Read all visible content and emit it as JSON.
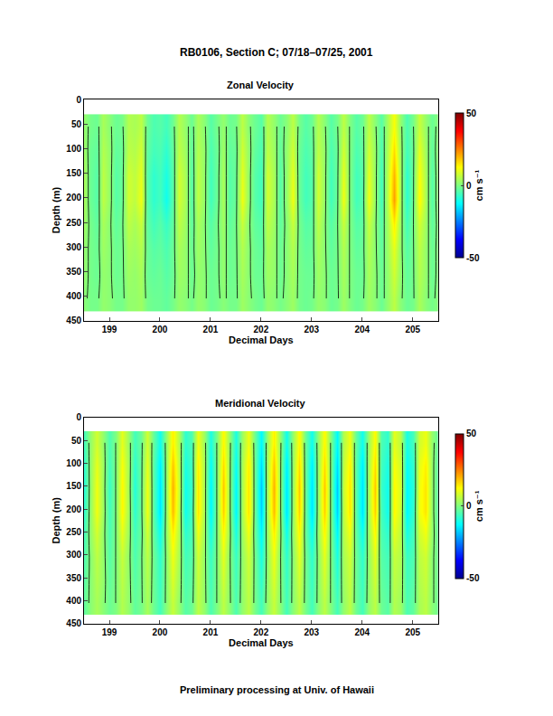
{
  "title": "RB0106, Section C; 07/18–07/25, 2001",
  "footer": "Preliminary processing at Univ. of Hawaii",
  "chart_data": [
    {
      "type": "heatmap",
      "title": "Zonal Velocity",
      "x_label": "Decimal Days",
      "y_label": "Depth (m)",
      "xlim": [
        198.5,
        205.5
      ],
      "xticks": [
        199,
        200,
        201,
        202,
        203,
        204,
        205
      ],
      "ylim": [
        450,
        0
      ],
      "yticks": [
        0,
        50,
        100,
        150,
        200,
        250,
        300,
        350,
        400,
        450
      ],
      "colorbar": {
        "range": [
          -50,
          50
        ],
        "ticks": [
          -50,
          0,
          50
        ],
        "title": "cm s⁻¹"
      },
      "contour_levels": [
        0
      ],
      "x": [
        198.5,
        198.625,
        198.75,
        198.875,
        199,
        199.125,
        199.25,
        199.375,
        199.5,
        199.625,
        199.75,
        199.875,
        200,
        200.125,
        200.25,
        200.375,
        200.5,
        200.625,
        200.75,
        200.875,
        201,
        201.125,
        201.25,
        201.375,
        201.5,
        201.625,
        201.75,
        201.875,
        202,
        202.125,
        202.25,
        202.375,
        202.5,
        202.625,
        202.75,
        202.875,
        203,
        203.125,
        203.25,
        203.375,
        203.5,
        203.625,
        203.75,
        203.875,
        204,
        204.125,
        204.25,
        204.375,
        204.5,
        204.625,
        204.75,
        204.875,
        205,
        205.125,
        205.25,
        205.375,
        205.5
      ],
      "y": [
        55,
        105,
        155,
        205,
        255,
        305,
        355,
        405
      ],
      "z": [
        [
          2,
          -1,
          -2,
          4,
          1,
          -2,
          -1,
          5,
          4,
          6,
          -2,
          -5,
          -4,
          -6,
          -2,
          5,
          2,
          -2,
          4,
          1,
          -4,
          -1,
          2,
          -2,
          -1,
          6,
          1,
          -2,
          -4,
          5,
          2,
          -2,
          1,
          6,
          -1,
          -4,
          -2,
          5,
          1,
          -4,
          -1,
          6,
          0,
          -4,
          -2,
          6,
          1,
          -4,
          4,
          12,
          2,
          -5,
          -1,
          7,
          2,
          -2,
          1
        ],
        [
          3,
          -2,
          -3,
          5,
          2,
          -3,
          -2,
          6,
          5,
          8,
          -3,
          -6,
          -5,
          -8,
          -3,
          6,
          3,
          -3,
          5,
          2,
          -5,
          -2,
          3,
          -3,
          -2,
          8,
          2,
          -3,
          -5,
          6,
          3,
          -3,
          2,
          8,
          -2,
          -5,
          -3,
          6,
          2,
          -5,
          -2,
          8,
          0,
          -5,
          -3,
          8,
          2,
          -5,
          5,
          16,
          3,
          -6,
          -2,
          10,
          3,
          -3,
          2
        ],
        [
          4,
          -2,
          -4,
          6,
          2,
          -4,
          -2,
          8,
          6,
          10,
          -4,
          -8,
          -6,
          -10,
          -4,
          8,
          4,
          -4,
          6,
          2,
          -6,
          -2,
          4,
          -4,
          -2,
          10,
          2,
          -4,
          -6,
          8,
          4,
          -4,
          2,
          10,
          -2,
          -6,
          -4,
          8,
          2,
          -6,
          -2,
          10,
          0,
          -6,
          -4,
          10,
          2,
          -6,
          6,
          20,
          4,
          -8,
          -2,
          12,
          4,
          -4,
          2
        ],
        [
          4,
          -2,
          -4,
          6,
          2,
          -4,
          -2,
          8,
          6,
          11,
          -4,
          -8,
          -6,
          -11,
          -4,
          8,
          4,
          -4,
          6,
          2,
          -6,
          -2,
          4,
          -4,
          -2,
          11,
          2,
          -4,
          -6,
          8,
          4,
          -4,
          2,
          11,
          -2,
          -6,
          -4,
          8,
          2,
          -6,
          -2,
          11,
          0,
          -6,
          -4,
          11,
          2,
          -6,
          6,
          22,
          4,
          -8,
          -2,
          13,
          4,
          -4,
          2
        ],
        [
          3,
          -1,
          -3,
          4,
          1,
          -3,
          -1,
          6,
          4,
          7,
          -3,
          -6,
          -4,
          -7,
          -3,
          6,
          3,
          -3,
          4,
          1,
          -4,
          -1,
          3,
          -3,
          -1,
          7,
          1,
          -3,
          -4,
          6,
          3,
          -3,
          1,
          7,
          -1,
          -4,
          -3,
          6,
          1,
          -4,
          -1,
          7,
          0,
          -4,
          -3,
          7,
          1,
          -4,
          4,
          14,
          3,
          -6,
          -1,
          8,
          3,
          -3,
          1
        ],
        [
          2,
          -1,
          -2,
          3,
          1,
          -2,
          -1,
          4,
          3,
          5,
          -2,
          -4,
          -3,
          -5,
          -2,
          4,
          2,
          -2,
          3,
          1,
          -3,
          -1,
          2,
          -2,
          -1,
          5,
          1,
          -2,
          -3,
          4,
          2,
          -2,
          1,
          5,
          -1,
          -3,
          -2,
          4,
          1,
          -3,
          -1,
          5,
          0,
          -3,
          -2,
          5,
          1,
          -3,
          3,
          10,
          2,
          -4,
          -1,
          6,
          2,
          -2,
          1
        ],
        [
          2,
          -1,
          -2,
          2,
          1,
          -2,
          -1,
          3,
          2,
          4,
          -2,
          -3,
          -2,
          -4,
          -2,
          3,
          2,
          -2,
          2,
          1,
          -2,
          -1,
          2,
          -2,
          -1,
          4,
          1,
          -2,
          -2,
          3,
          2,
          -2,
          1,
          4,
          -1,
          -2,
          -2,
          3,
          1,
          -2,
          -1,
          4,
          0,
          -2,
          -2,
          4,
          1,
          -2,
          2,
          8,
          2,
          -3,
          -1,
          5,
          2,
          -2,
          1
        ],
        [
          1,
          -1,
          -1,
          2,
          1,
          -1,
          -1,
          2,
          2,
          3,
          -1,
          -2,
          -2,
          -3,
          -1,
          2,
          1,
          -1,
          2,
          1,
          -2,
          -1,
          1,
          -1,
          -1,
          3,
          1,
          -1,
          -2,
          2,
          1,
          -1,
          1,
          3,
          -1,
          -2,
          -1,
          2,
          1,
          -2,
          -1,
          3,
          0,
          -2,
          -1,
          3,
          1,
          -2,
          2,
          6,
          1,
          -2,
          -1,
          4,
          1,
          -1,
          1
        ]
      ]
    },
    {
      "type": "heatmap",
      "title": "Meridional Velocity",
      "x_label": "Decimal Days",
      "y_label": "Depth (m)",
      "xlim": [
        198.5,
        205.5
      ],
      "xticks": [
        199,
        200,
        201,
        202,
        203,
        204,
        205
      ],
      "ylim": [
        450,
        0
      ],
      "yticks": [
        0,
        50,
        100,
        150,
        200,
        250,
        300,
        350,
        400,
        450
      ],
      "colorbar": {
        "range": [
          -50,
          50
        ],
        "ticks": [
          -50,
          0,
          50
        ],
        "title": "cm s⁻¹"
      },
      "contour_levels": [
        0
      ],
      "x": [
        198.5,
        198.625,
        198.75,
        198.875,
        199,
        199.125,
        199.25,
        199.375,
        199.5,
        199.625,
        199.75,
        199.875,
        200,
        200.125,
        200.25,
        200.375,
        200.5,
        200.625,
        200.75,
        200.875,
        201,
        201.125,
        201.25,
        201.375,
        201.5,
        201.625,
        201.75,
        201.875,
        202,
        202.125,
        202.25,
        202.375,
        202.5,
        202.625,
        202.75,
        202.875,
        203,
        203.125,
        203.25,
        203.375,
        203.5,
        203.625,
        203.75,
        203.875,
        204,
        204.125,
        204.25,
        204.375,
        204.5,
        204.625,
        204.75,
        204.875,
        205,
        205.125,
        205.25,
        205.375,
        205.5
      ],
      "y": [
        55,
        105,
        155,
        205,
        255,
        305,
        355,
        405
      ],
      "z": [
        [
          -6,
          2,
          8,
          2,
          -5,
          0,
          10,
          3,
          -6,
          -2,
          8,
          -3,
          -11,
          2,
          14,
          5,
          -8,
          -5,
          11,
          3,
          -10,
          0,
          13,
          2,
          -10,
          3,
          11,
          -2,
          -13,
          3,
          14,
          2,
          -11,
          2,
          13,
          -2,
          -11,
          2,
          13,
          0,
          -13,
          5,
          11,
          -3,
          -11,
          3,
          13,
          -5,
          -8,
          10,
          6,
          -10,
          -6,
          8,
          11,
          2,
          -3
        ],
        [
          -8,
          2,
          10,
          3,
          -6,
          0,
          12,
          4,
          -8,
          -2,
          10,
          -4,
          -14,
          2,
          18,
          6,
          -10,
          -6,
          14,
          4,
          -12,
          0,
          16,
          2,
          -12,
          4,
          14,
          -2,
          -16,
          4,
          18,
          2,
          -14,
          2,
          16,
          -2,
          -14,
          2,
          16,
          0,
          -16,
          6,
          14,
          -4,
          -14,
          4,
          16,
          -6,
          -10,
          12,
          8,
          -12,
          -8,
          10,
          14,
          2,
          -4
        ],
        [
          -9,
          2,
          11,
          3,
          -7,
          0,
          13,
          4,
          -9,
          -2,
          11,
          -4,
          -15,
          2,
          20,
          7,
          -11,
          -7,
          15,
          4,
          -13,
          0,
          18,
          2,
          -13,
          4,
          15,
          -2,
          -18,
          4,
          20,
          2,
          -15,
          2,
          18,
          -2,
          -15,
          2,
          18,
          0,
          -18,
          7,
          15,
          -4,
          -15,
          4,
          18,
          -7,
          -11,
          13,
          9,
          -13,
          -9,
          11,
          15,
          2,
          -4
        ],
        [
          -8,
          2,
          11,
          3,
          -6,
          0,
          13,
          4,
          -8,
          -2,
          11,
          -4,
          -15,
          2,
          19,
          6,
          -11,
          -6,
          15,
          4,
          -13,
          0,
          17,
          2,
          -13,
          4,
          15,
          -2,
          -17,
          4,
          19,
          2,
          -15,
          2,
          17,
          -2,
          -15,
          2,
          17,
          0,
          -17,
          6,
          15,
          -4,
          -15,
          4,
          17,
          -6,
          -11,
          13,
          8,
          -13,
          -8,
          11,
          15,
          2,
          -4
        ],
        [
          -6,
          2,
          8,
          2,
          -5,
          0,
          10,
          3,
          -6,
          -2,
          8,
          -3,
          -11,
          2,
          14,
          5,
          -8,
          -5,
          11,
          3,
          -10,
          0,
          13,
          2,
          -10,
          3,
          11,
          -2,
          -13,
          3,
          14,
          2,
          -11,
          2,
          13,
          -2,
          -11,
          2,
          13,
          0,
          -13,
          5,
          11,
          -3,
          -11,
          3,
          13,
          -5,
          -8,
          10,
          6,
          -10,
          -6,
          8,
          11,
          2,
          -3
        ],
        [
          -5,
          1,
          6,
          2,
          -4,
          0,
          7,
          2,
          -5,
          -1,
          6,
          -2,
          -8,
          1,
          11,
          4,
          -6,
          -4,
          8,
          2,
          -7,
          0,
          10,
          1,
          -7,
          2,
          8,
          -1,
          -10,
          2,
          11,
          1,
          -8,
          1,
          10,
          -1,
          -8,
          1,
          10,
          0,
          -10,
          4,
          8,
          -2,
          -8,
          2,
          10,
          -4,
          -6,
          7,
          5,
          -7,
          -5,
          6,
          8,
          1,
          -2
        ],
        [
          -4,
          1,
          5,
          2,
          -3,
          0,
          6,
          2,
          -4,
          -1,
          5,
          -2,
          -7,
          1,
          9,
          3,
          -5,
          -3,
          7,
          2,
          -6,
          0,
          8,
          1,
          -6,
          2,
          7,
          -1,
          -8,
          2,
          9,
          1,
          -7,
          1,
          8,
          -1,
          -7,
          1,
          8,
          0,
          -8,
          3,
          7,
          -2,
          -7,
          2,
          8,
          -3,
          -5,
          6,
          4,
          -6,
          -4,
          5,
          7,
          1,
          -2
        ],
        [
          -3,
          1,
          4,
          1,
          -2,
          0,
          5,
          2,
          -3,
          -1,
          4,
          -2,
          -6,
          1,
          7,
          2,
          -4,
          -2,
          6,
          2,
          -5,
          0,
          6,
          1,
          -5,
          2,
          6,
          -1,
          -6,
          2,
          7,
          1,
          -6,
          1,
          6,
          -1,
          -6,
          1,
          6,
          0,
          -6,
          2,
          6,
          -2,
          -6,
          2,
          6,
          -2,
          -4,
          5,
          3,
          -5,
          -3,
          4,
          6,
          1,
          -2
        ]
      ]
    }
  ]
}
